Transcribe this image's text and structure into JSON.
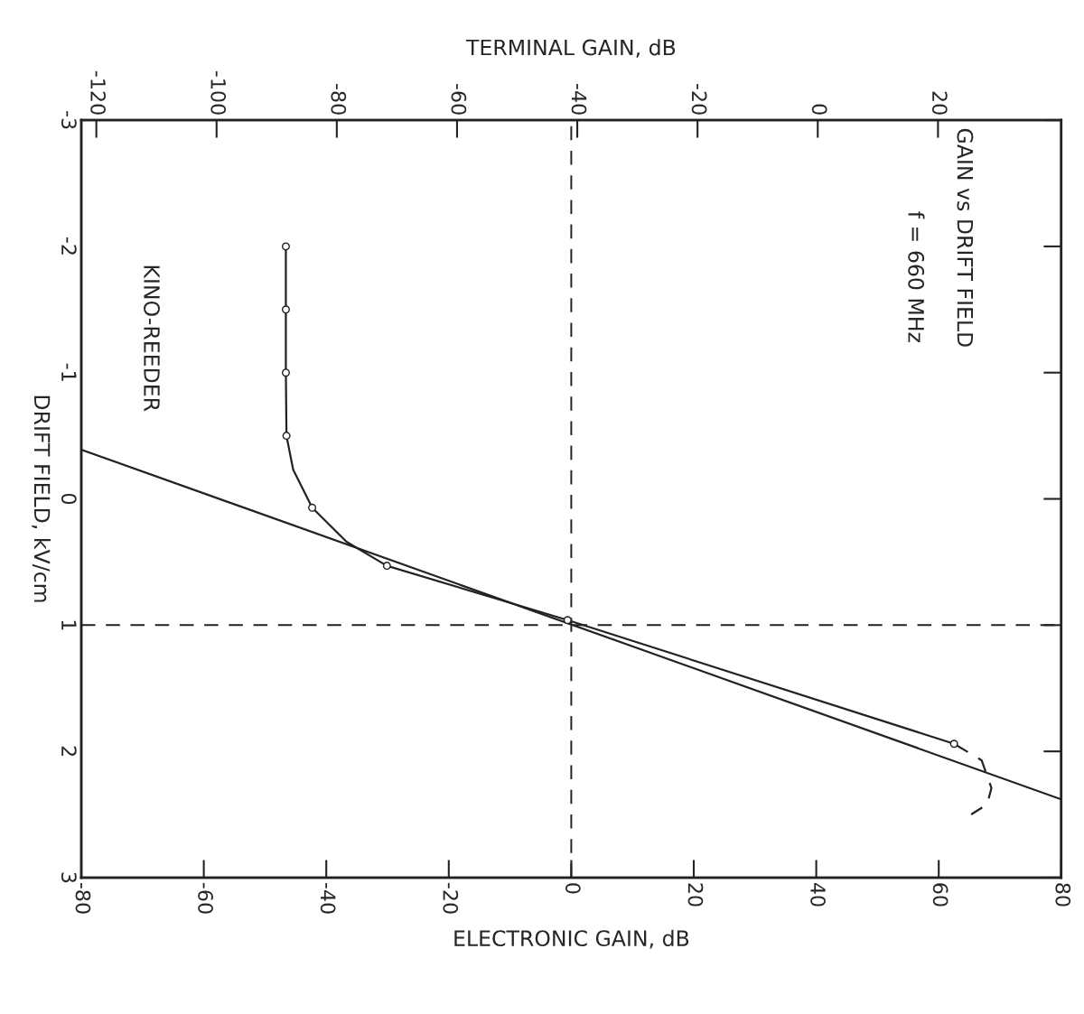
{
  "chart_data": {
    "type": "line",
    "xlabel": "ELECTRONIC GAIN, dB",
    "x2label": "TERMINAL GAIN, dB",
    "ylabel": "DRIFT FIELD, kV/cm",
    "xlim": [
      -80,
      80
    ],
    "xticks": [
      -80,
      -60,
      -40,
      -20,
      0,
      20,
      40,
      60,
      80
    ],
    "x2lim": [
      -122.5,
      40.5
    ],
    "x2ticks": [
      -120,
      -100,
      -80,
      -60,
      -40,
      -20,
      0,
      20
    ],
    "ylim": [
      3,
      -3
    ],
    "yticks": [
      -3,
      -2,
      -1,
      0,
      1,
      2,
      3
    ],
    "grid": false,
    "legend": false,
    "series": [
      {
        "color": "#222222",
        "line_style": "solid",
        "x": [
          -80,
          80
        ],
        "values": [
          -0.39,
          2.38
        ]
      },
      {
        "color": "#222222",
        "line_style": "solid",
        "x": [
          -46.6,
          -46.6,
          -46.6,
          -46.5,
          -45.4,
          -42.3,
          -36.7,
          -30.1,
          -0.6,
          62.5
        ],
        "values": [
          -2,
          -1.5,
          -1,
          -0.5,
          -0.23,
          0.07,
          0.34,
          0.53,
          0.96,
          1.94
        ]
      },
      {
        "color": "#222222",
        "line_style": "dashed",
        "x": [
          62.5,
          67.0,
          68.6,
          67.9,
          65.3
        ],
        "values": [
          1.94,
          2.07,
          2.29,
          2.42,
          2.5
        ]
      },
      {
        "type": "scatter",
        "color": "#222222",
        "marker": "circle",
        "x": [
          -46.6,
          -46.6,
          -46.6,
          -46.5,
          -42.3,
          -30.1,
          -0.6,
          62.5
        ],
        "values": [
          -2,
          -1.5,
          -1,
          -0.5,
          0.07,
          0.53,
          0.96,
          1.94
        ]
      }
    ],
    "ref_lines": [
      {
        "axis": "x",
        "value": 0,
        "line_style": "dashed",
        "color": "#222222"
      },
      {
        "axis": "y",
        "value": 1,
        "line_style": "dashed",
        "color": "#222222"
      }
    ],
    "annotations": [
      "GAIN vs DRIFT FIELD",
      "f = 660 MHz",
      "KINO-REEDER"
    ]
  }
}
